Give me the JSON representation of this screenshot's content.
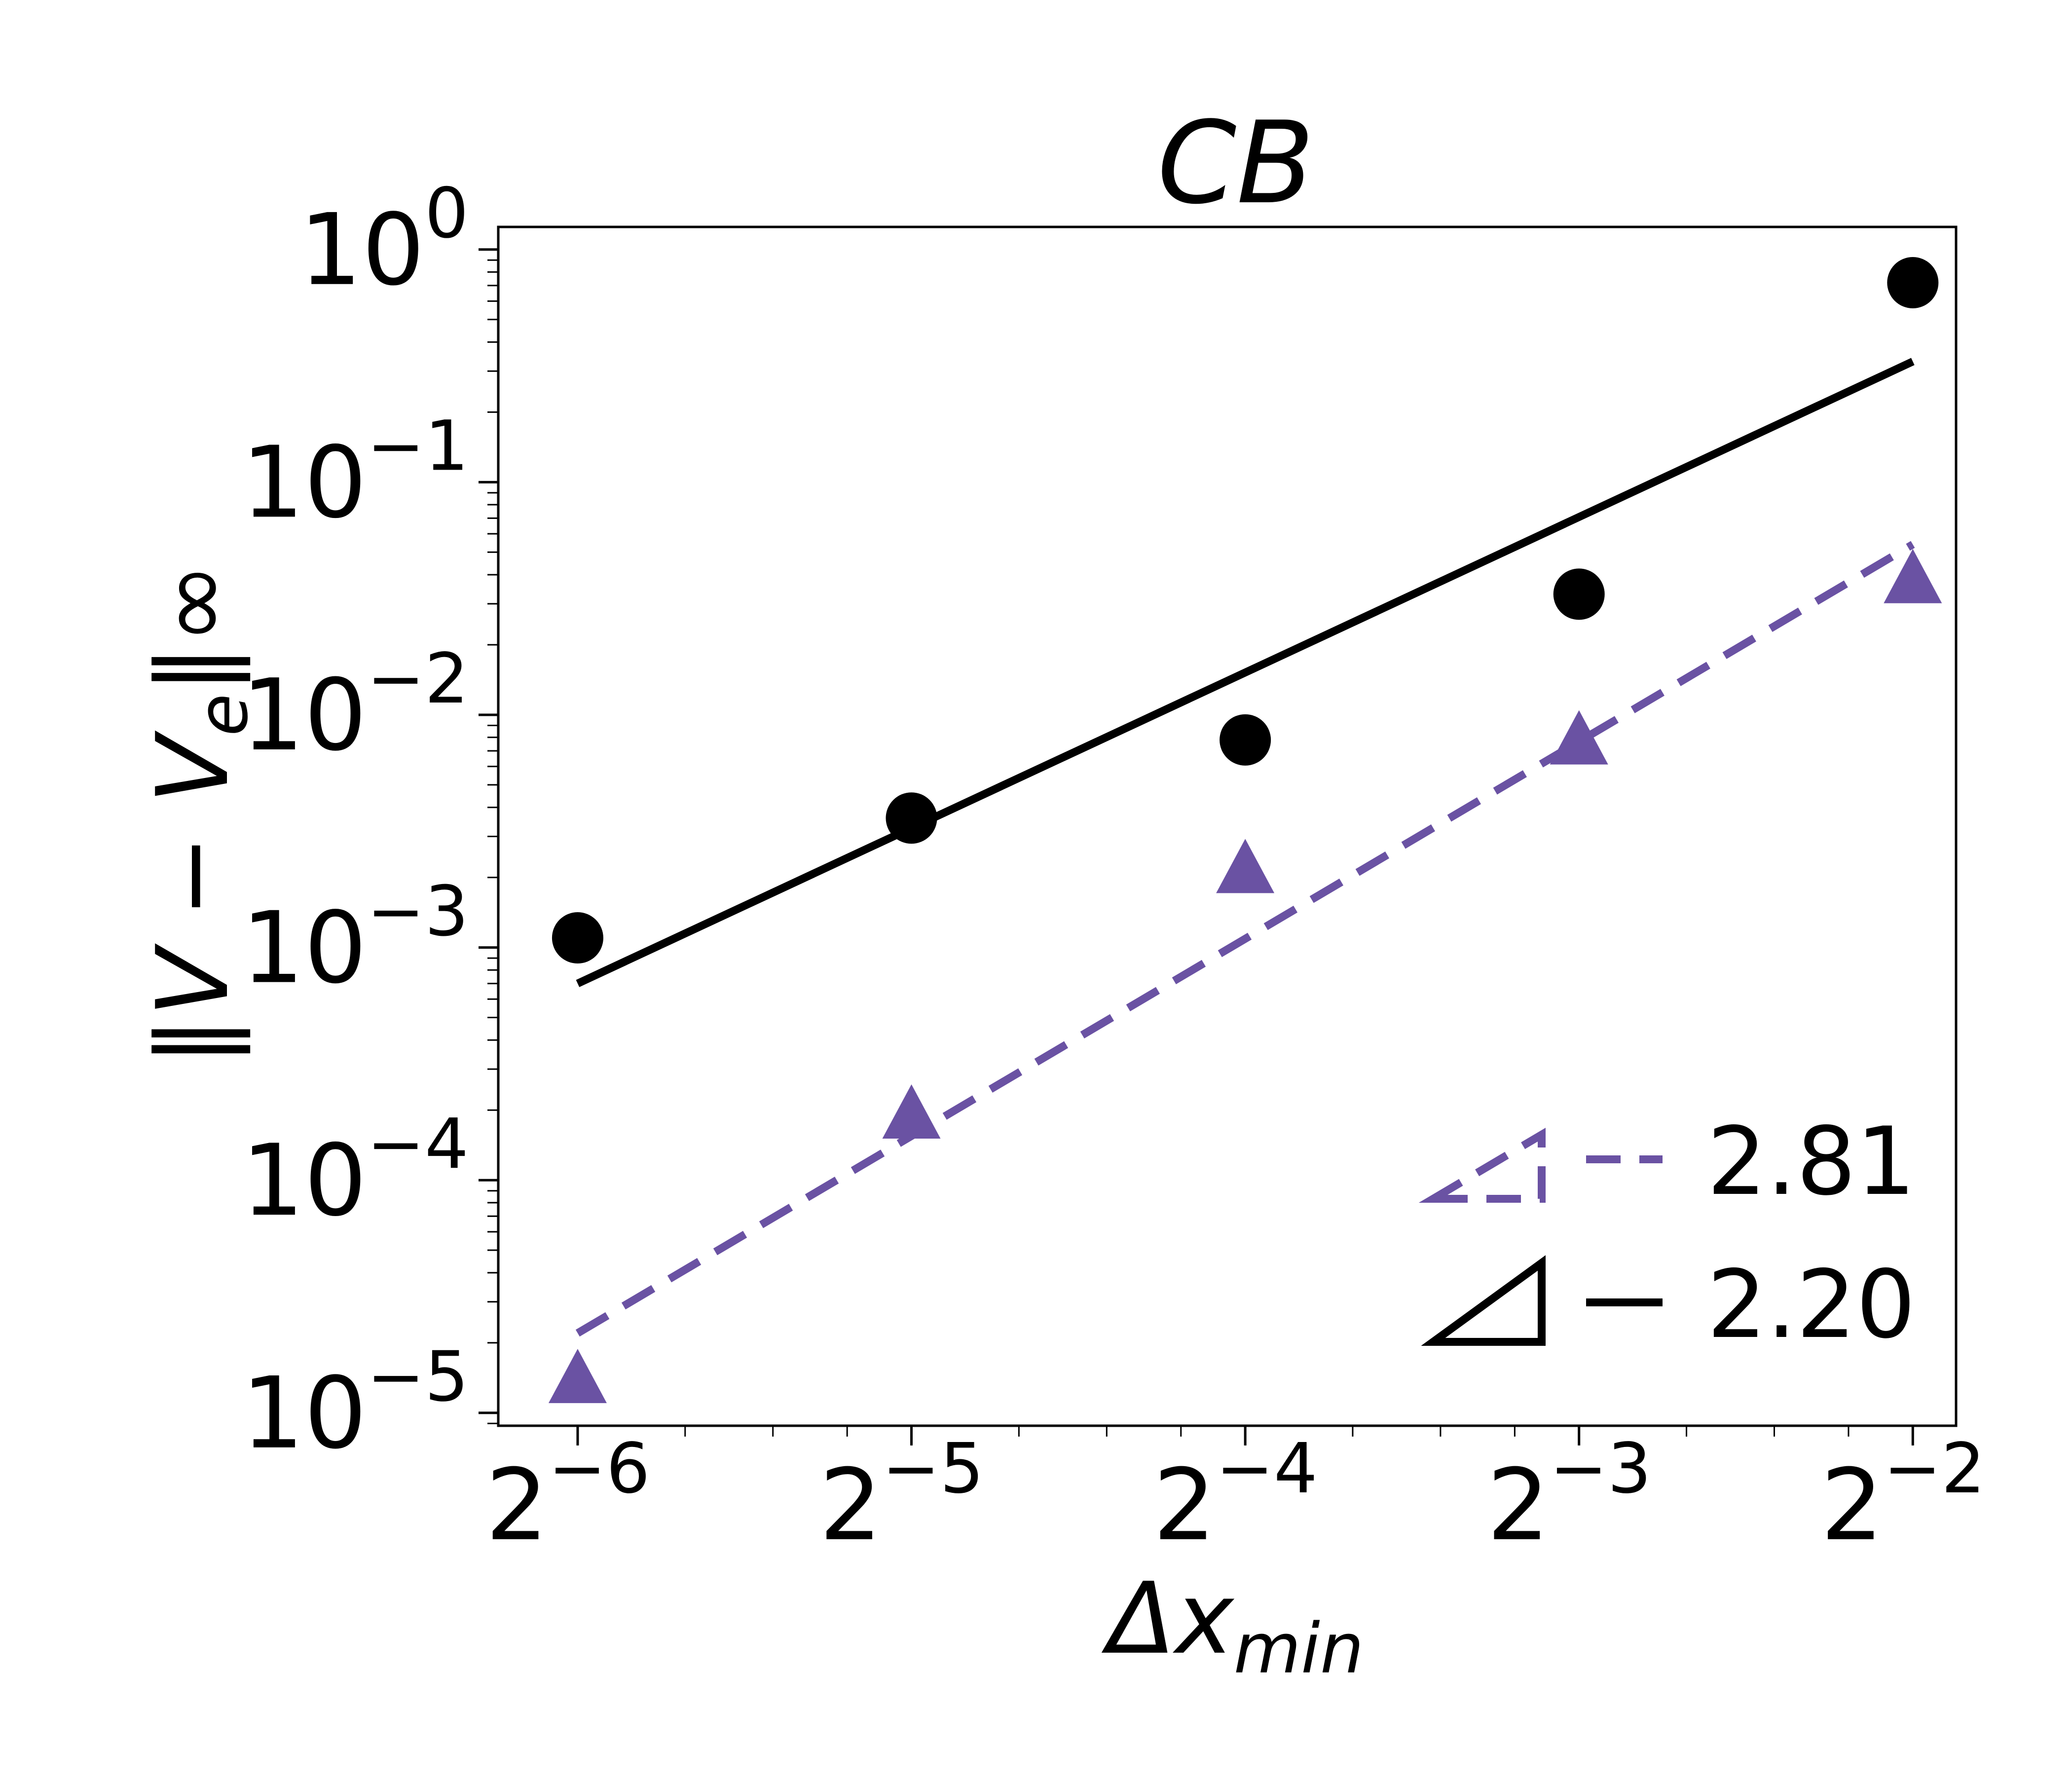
{
  "chart_data": {
    "type": "scatter",
    "title": "CB",
    "xlabel": "Δx",
    "xlabel_sub": "min",
    "ylabel": "‖V − V",
    "ylabel_sub": "e",
    "ylabel_tail": "‖∞",
    "xscale": "log2",
    "yscale": "log10",
    "xlim": [
      0.01325,
      0.2735
    ],
    "ylim": [
      8.8e-06,
      1.25
    ],
    "x_ticks": [
      {
        "value": 0.015625,
        "base": "2",
        "exp": "−6"
      },
      {
        "value": 0.03125,
        "base": "2",
        "exp": "−5"
      },
      {
        "value": 0.0625,
        "base": "2",
        "exp": "−4"
      },
      {
        "value": 0.125,
        "base": "2",
        "exp": "−3"
      },
      {
        "value": 0.25,
        "base": "2",
        "exp": "−2"
      }
    ],
    "y_ticks": [
      {
        "value": 1,
        "base": "10",
        "exp": "0"
      },
      {
        "value": 0.1,
        "base": "10",
        "exp": "−1"
      },
      {
        "value": 0.01,
        "base": "10",
        "exp": "−2"
      },
      {
        "value": 0.001,
        "base": "10",
        "exp": "−3"
      },
      {
        "value": 0.0001,
        "base": "10",
        "exp": "−4"
      },
      {
        "value": 1e-05,
        "base": "10",
        "exp": "−5"
      }
    ],
    "grid": false,
    "legend_position": "bottom-right",
    "series": [
      {
        "marker": "circle",
        "color": "#000000",
        "x": [
          0.015625,
          0.03125,
          0.0625,
          0.125,
          0.25
        ],
        "y": [
          0.0011,
          0.0036,
          0.0078,
          0.033,
          0.72
        ],
        "fit": {
          "line": "solid",
          "x": [
            0.015625,
            0.25
          ],
          "y": [
            0.0007,
            0.33
          ]
        }
      },
      {
        "marker": "triangle",
        "color": "#6a52a3",
        "x": [
          0.015625,
          0.03125,
          0.0625,
          0.125,
          0.25
        ],
        "y": [
          1.35e-05,
          0.000185,
          0.0021,
          0.0075,
          0.037
        ],
        "fit": {
          "line": "dashed",
          "x": [
            0.015625,
            0.25
          ],
          "y": [
            2.2e-05,
            0.054
          ]
        }
      }
    ],
    "legend": [
      {
        "label": "2.81",
        "color": "#6a52a3",
        "line": "dashed"
      },
      {
        "label": "2.20",
        "color": "#000000",
        "line": "solid"
      }
    ]
  }
}
